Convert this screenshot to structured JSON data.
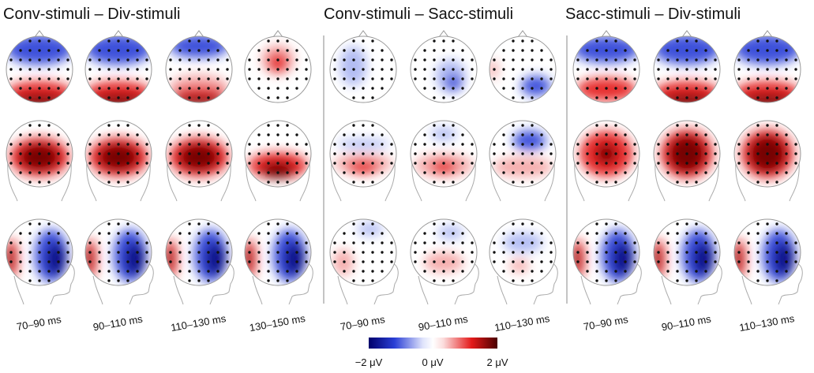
{
  "panels": [
    {
      "title": "Conv-stimuli – Div-stimuli",
      "time_windows": [
        "70–90 ms",
        "90–110 ms",
        "110–130 ms",
        "130–150 ms"
      ]
    },
    {
      "title": "Conv-stimuli – Sacc-stimuli",
      "time_windows": [
        "70–90 ms",
        "90–110 ms",
        "110–130 ms"
      ]
    },
    {
      "title": "Sacc-stimuli – Div-stimuli",
      "time_windows": [
        "70–90 ms",
        "90–110 ms",
        "110–130 ms"
      ]
    }
  ],
  "colorbar": {
    "labels": [
      "−2 μV",
      "0 μV",
      "2 μV"
    ]
  }
}
